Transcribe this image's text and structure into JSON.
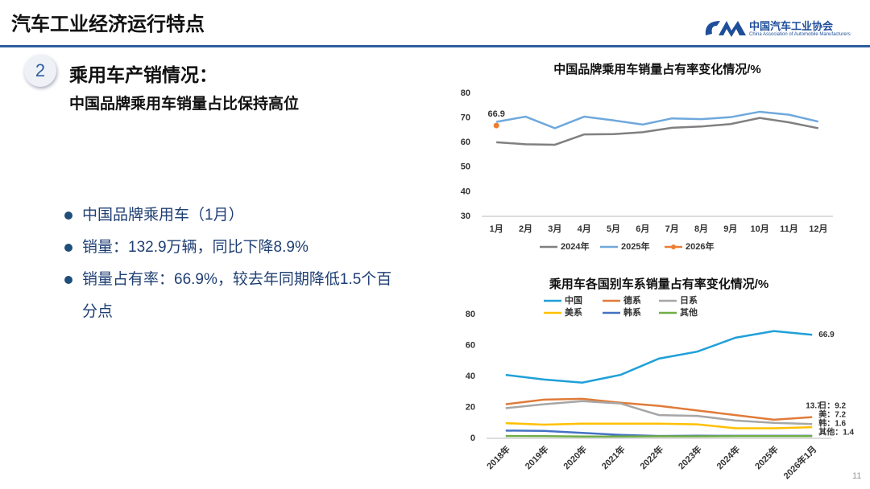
{
  "header": {
    "title": "汽车工业经济运行特点",
    "logo_cn": "中国汽车工业协会",
    "logo_en": "China Association of Automobile Manufacturers"
  },
  "section": {
    "number": "2",
    "title": "乘用车产销情况：",
    "subtitle": "中国品牌乘用车销量占比保持高位"
  },
  "bullets": [
    "中国品牌乘用车（1月）",
    "销量：132.9万辆，同比下降8.9%",
    "销量占有率：66.9%，较去年同期降低1.5个百分点"
  ],
  "page_number": "11",
  "chart_data": [
    {
      "type": "line",
      "title": "中国品牌乘用车销量占有率变化情况/%",
      "categories": [
        "1月",
        "2月",
        "3月",
        "4月",
        "5月",
        "6月",
        "7月",
        "8月",
        "9月",
        "10月",
        "11月",
        "12月"
      ],
      "ylim": [
        30,
        80
      ],
      "yticks": [
        30,
        40,
        50,
        60,
        70,
        80
      ],
      "grid": false,
      "legend": "bottom",
      "series": [
        {
          "name": "2024年",
          "color": "#808080",
          "values": [
            60.1,
            59.3,
            59.1,
            63.3,
            63.4,
            64.2,
            66.0,
            66.5,
            67.5,
            70.0,
            68.2,
            65.8
          ]
        },
        {
          "name": "2025年",
          "color": "#6fa8dc",
          "values": [
            68.4,
            70.5,
            65.8,
            70.5,
            69.0,
            67.3,
            69.8,
            69.5,
            70.3,
            72.5,
            71.3,
            68.5
          ]
        },
        {
          "name": "2026年",
          "color": "#ed7d31",
          "marker": "circle",
          "show_labels": "all",
          "values": [
            66.9,
            null,
            null,
            null,
            null,
            null,
            null,
            null,
            null,
            null,
            null,
            null
          ]
        }
      ]
    },
    {
      "type": "line",
      "title": "乘用车各国别车系销量占有率变化情况/%",
      "categories": [
        "2018年",
        "2019年",
        "2020年",
        "2021年",
        "2022年",
        "2023年",
        "2024年",
        "2025年",
        "2026年1月"
      ],
      "ylim": [
        0,
        80
      ],
      "yticks": [
        0,
        20,
        40,
        60,
        80
      ],
      "grid": false,
      "legend": "top",
      "series": [
        {
          "name": "中国",
          "color": "#1fa0d8",
          "show_labels": "last",
          "values": [
            41.0,
            38.0,
            36.0,
            41.0,
            51.5,
            56.0,
            65.0,
            69.3,
            66.9
          ]
        },
        {
          "name": "德系",
          "color": "#e07b39",
          "show_labels": "last",
          "values": [
            22.0,
            25.0,
            25.5,
            23.0,
            21.0,
            18.0,
            15.0,
            12.0,
            13.7
          ]
        },
        {
          "name": "日系",
          "color": "#a6a6a6",
          "show_labels": "last",
          "values": [
            19.5,
            22.0,
            24.0,
            22.5,
            15.0,
            14.5,
            11.5,
            10.0,
            9.2
          ],
          "value_labels": [
            null,
            null,
            null,
            null,
            null,
            null,
            null,
            null,
            "日：9.2"
          ]
        },
        {
          "name": "美系",
          "color": "#ffc000",
          "show_labels": "last",
          "values": [
            9.8,
            8.8,
            9.5,
            9.5,
            9.5,
            9.0,
            6.5,
            6.5,
            7.2
          ],
          "value_labels": [
            null,
            null,
            null,
            null,
            null,
            null,
            null,
            null,
            "美：7.2"
          ]
        },
        {
          "name": "韩系",
          "color": "#4472c4",
          "show_labels": "last",
          "values": [
            5.0,
            4.8,
            3.5,
            2.2,
            1.5,
            1.7,
            1.6,
            1.6,
            1.6
          ],
          "value_labels": [
            null,
            null,
            null,
            null,
            null,
            null,
            null,
            null,
            "韩：1.6"
          ]
        },
        {
          "name": "其他",
          "color": "#70ad47",
          "show_labels": "last",
          "values": [
            1.5,
            1.4,
            1.2,
            1.2,
            1.3,
            1.3,
            1.4,
            1.4,
            1.4
          ],
          "value_labels": [
            null,
            null,
            null,
            null,
            null,
            null,
            null,
            null,
            "其他：1.4"
          ]
        }
      ]
    }
  ]
}
